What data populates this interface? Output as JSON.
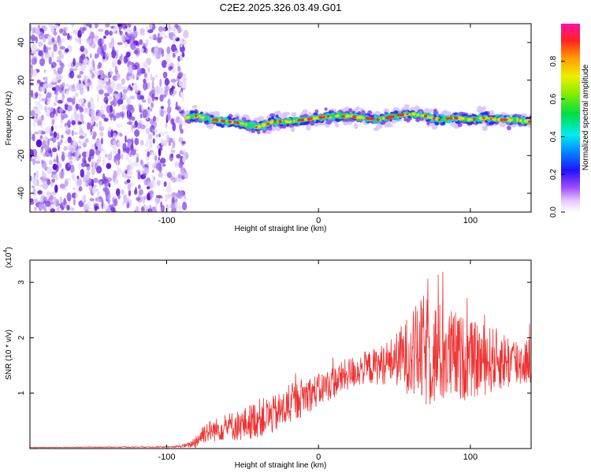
{
  "title": "C2E2.2025.326.03.49.G01",
  "colors": {
    "signal_line": "#ee3333",
    "noise_purple": "#7a3fe0",
    "axis": "#000000"
  },
  "chart_data": [
    {
      "type": "heatmap",
      "name": "spectrogram",
      "xlabel": "Height of straight line (km)",
      "ylabel": "Frequency (Hz)",
      "xlim": [
        -190,
        140
      ],
      "ylim": [
        -50,
        50
      ],
      "xticks": [
        -100,
        0,
        100
      ],
      "xtick_labels": [
        "-100",
        "0",
        "100"
      ],
      "yticks": [
        -40,
        -20,
        0,
        20,
        40
      ],
      "ytick_labels": [
        "-40",
        "-20",
        "0",
        "20",
        "40"
      ],
      "noise_region_x": [
        -190,
        -87
      ],
      "signal_start_x": -87,
      "ridge": {
        "x": [
          -87,
          -80,
          -70,
          -60,
          -50,
          -40,
          -33,
          -30,
          -20,
          -10,
          0,
          10,
          20,
          30,
          40,
          50,
          60,
          70,
          80,
          90,
          100,
          110,
          120,
          130,
          140
        ],
        "frequency": [
          0,
          1,
          -1,
          -2,
          -3,
          -5,
          -3,
          -2,
          -2,
          -1,
          0,
          1,
          1,
          0,
          -1,
          1,
          2,
          1,
          -1,
          0,
          -1,
          0,
          -1,
          -1,
          -2
        ]
      },
      "colorbar": {
        "label": "Normalized spectral amplitude",
        "range": [
          0,
          1
        ],
        "ticks": [
          0.0,
          0.2,
          0.4,
          0.6,
          0.8
        ],
        "tick_labels": [
          "0.0",
          "0.2",
          "0.4",
          "0.6",
          "0.8"
        ]
      }
    },
    {
      "type": "line",
      "name": "snr",
      "xlabel": "Height of straight line (km)",
      "ylabel": "SNR (10 * v/v)",
      "multiplier_label": "(x10",
      "multiplier_exponent": "4",
      "multiplier_suffix": ")",
      "xlim": [
        -190,
        140
      ],
      "ylim": [
        0,
        3.4
      ],
      "xticks": [
        -100,
        0,
        100
      ],
      "xtick_labels": [
        "-100",
        "0",
        "100"
      ],
      "yticks": [
        1,
        2,
        3
      ],
      "ytick_labels": [
        "1",
        "2",
        "3"
      ],
      "series": [
        {
          "name": "SNR",
          "color": "#ee3333",
          "envelope_x": [
            -190,
            -95,
            -85,
            -80,
            -75,
            -70,
            -60,
            -50,
            -40,
            -30,
            -20,
            -10,
            0,
            10,
            20,
            30,
            40,
            50,
            60,
            70,
            80,
            90,
            100,
            110,
            120,
            130,
            140
          ],
          "envelope_mean": [
            0.02,
            0.03,
            0.06,
            0.15,
            0.3,
            0.32,
            0.4,
            0.42,
            0.55,
            0.6,
            0.75,
            0.95,
            1.05,
            1.2,
            1.35,
            1.45,
            1.5,
            1.6,
            1.7,
            1.75,
            1.7,
            1.65,
            1.6,
            1.6,
            1.6,
            1.55,
            1.6
          ],
          "envelope_spread": [
            0.005,
            0.01,
            0.05,
            0.15,
            0.2,
            0.2,
            0.25,
            0.3,
            0.35,
            0.35,
            0.35,
            0.35,
            0.3,
            0.3,
            0.3,
            0.3,
            0.35,
            0.45,
            0.75,
            1.05,
            0.95,
            0.85,
            0.7,
            0.65,
            0.55,
            0.5,
            0.4
          ]
        }
      ]
    }
  ]
}
